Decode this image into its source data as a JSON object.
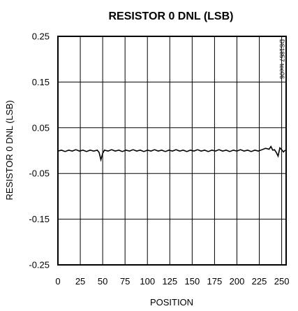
{
  "chart_data": {
    "type": "line",
    "title": "RESISTOR 0 DNL (LSB)",
    "xlabel": "POSITION",
    "ylabel": "RESISTOR 0 DNL  (LSB)",
    "side_note": "DS1857 toc06",
    "xlim": [
      0,
      255
    ],
    "ylim": [
      -0.25,
      0.25
    ],
    "x_ticks": [
      0,
      25,
      50,
      75,
      100,
      125,
      150,
      175,
      200,
      225,
      250
    ],
    "x_tick_labels": [
      "0",
      "25",
      "50",
      "75",
      "100",
      "125",
      "150",
      "175",
      "200",
      "225",
      "250"
    ],
    "y_ticks": [
      0.25,
      0.15,
      0.05,
      -0.05,
      -0.15,
      -0.25
    ],
    "y_tick_labels": [
      "0.25",
      "0.15",
      "0.05",
      "-0.05",
      "-0.15",
      "-0.25"
    ],
    "grid": true,
    "line_color": "#000000",
    "series": [
      {
        "x": [
          0,
          4,
          8,
          12,
          16,
          20,
          24,
          28,
          32,
          36,
          40,
          44,
          46,
          48,
          50,
          52,
          56,
          60,
          64,
          68,
          72,
          76,
          80,
          84,
          88,
          92,
          96,
          100,
          104,
          108,
          112,
          116,
          120,
          124,
          128,
          132,
          136,
          140,
          144,
          148,
          152,
          156,
          160,
          164,
          168,
          172,
          176,
          180,
          184,
          188,
          192,
          196,
          200,
          204,
          208,
          212,
          216,
          220,
          224,
          228,
          232,
          236,
          238,
          240,
          242,
          244,
          246,
          248,
          250,
          252,
          254
        ],
        "y": [
          -0.001,
          0.001,
          -0.002,
          0.001,
          -0.001,
          0.002,
          -0.001,
          0.001,
          -0.002,
          0.001,
          -0.001,
          0.001,
          -0.004,
          -0.02,
          -0.006,
          0.001,
          -0.001,
          0.002,
          -0.001,
          0.001,
          -0.002,
          0.001,
          -0.001,
          0.002,
          -0.001,
          0.001,
          -0.002,
          0.001,
          -0.001,
          0.002,
          -0.001,
          0.001,
          -0.002,
          0.001,
          -0.001,
          0.002,
          -0.001,
          0.001,
          -0.002,
          0.001,
          -0.001,
          0.002,
          -0.001,
          0.001,
          -0.002,
          0.001,
          -0.001,
          0.002,
          -0.001,
          0.001,
          -0.002,
          0.001,
          -0.001,
          0.002,
          -0.001,
          0.001,
          -0.002,
          0.001,
          -0.001,
          0.002,
          0.005,
          0.003,
          0.009,
          0.001,
          0.002,
          -0.004,
          -0.012,
          0.006,
          0.002,
          -0.003,
          0.001
        ]
      }
    ]
  }
}
